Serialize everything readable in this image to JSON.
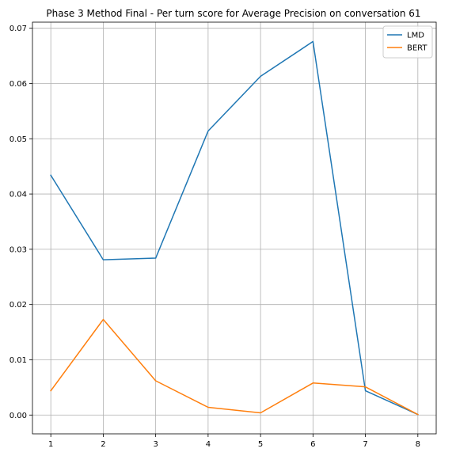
{
  "chart_data": {
    "type": "line",
    "title": "Phase 3 Method Final - Per turn score for Average Precision on conversation 61",
    "xlabel": "",
    "ylabel": "",
    "x": [
      1,
      2,
      3,
      4,
      5,
      6,
      7,
      8
    ],
    "xlim": [
      0.65,
      8.35
    ],
    "ylim": [
      -0.0034,
      0.0711
    ],
    "xticks": [
      1,
      2,
      3,
      4,
      5,
      6,
      7,
      8
    ],
    "yticks": [
      0.0,
      0.01,
      0.02,
      0.03,
      0.04,
      0.05,
      0.06,
      0.07
    ],
    "ytick_labels": [
      "0.00",
      "0.01",
      "0.02",
      "0.03",
      "0.04",
      "0.05",
      "0.06",
      "0.07"
    ],
    "grid": true,
    "legend_position": "top-right",
    "series": [
      {
        "name": "LMD",
        "color": "#1f77b4",
        "values": [
          0.0434,
          0.0281,
          0.0284,
          0.0514,
          0.0613,
          0.0676,
          0.0044,
          0.0001
        ]
      },
      {
        "name": "BERT",
        "color": "#ff7f0e",
        "values": [
          0.0044,
          0.0173,
          0.0062,
          0.0014,
          0.0004,
          0.0058,
          0.0051,
          0.0001
        ]
      }
    ]
  }
}
